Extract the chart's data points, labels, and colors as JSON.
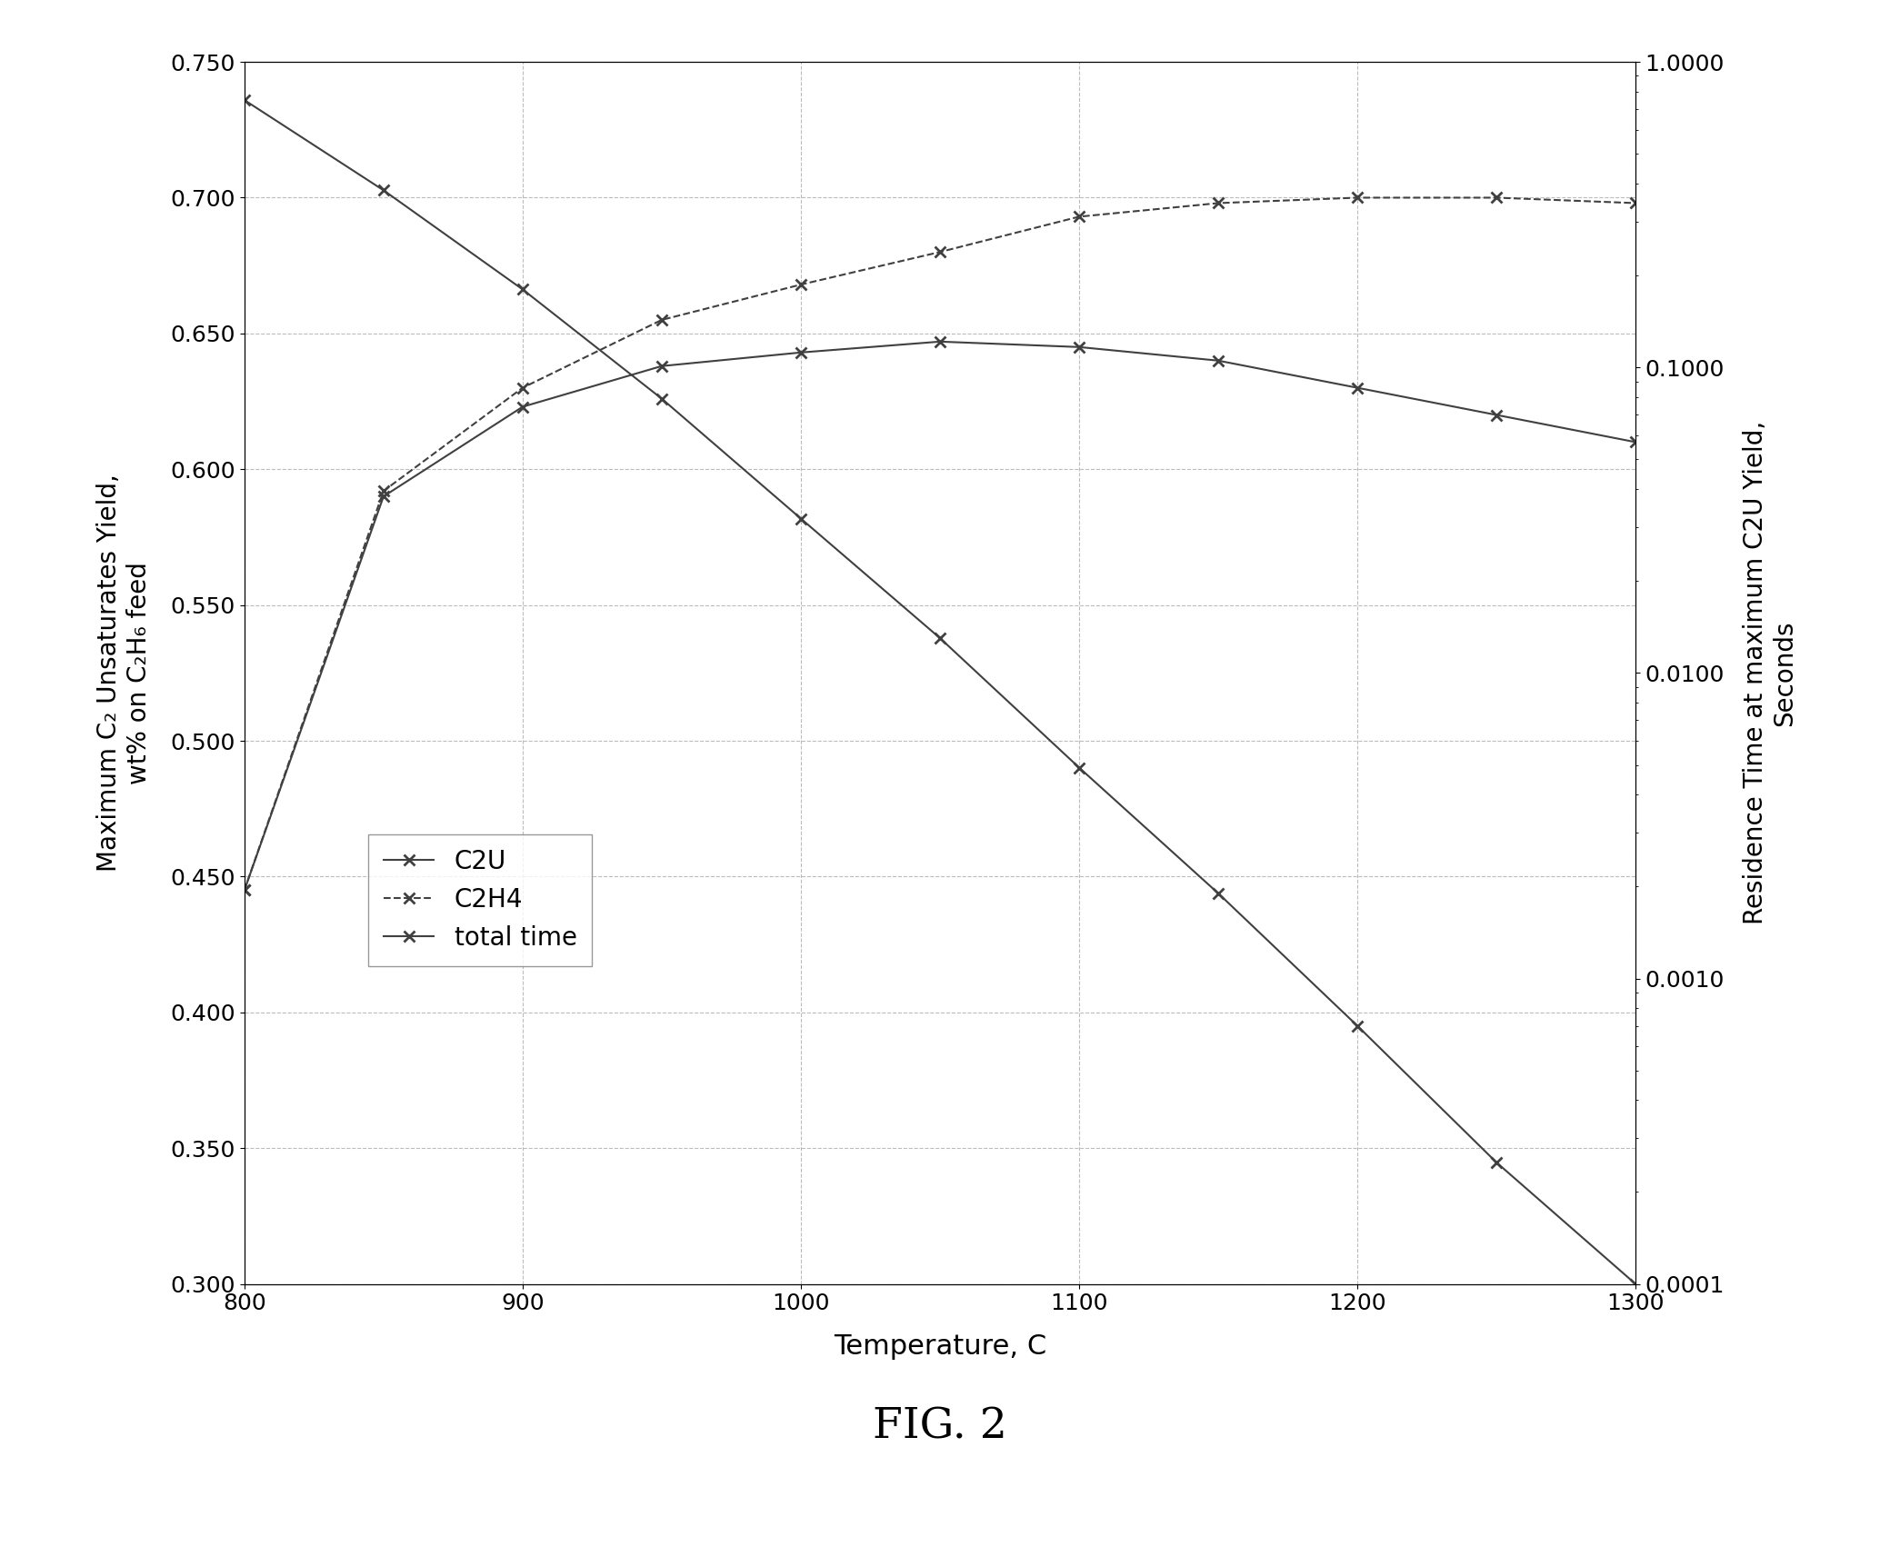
{
  "temperatures": [
    800,
    850,
    900,
    950,
    1000,
    1050,
    1100,
    1150,
    1200,
    1250,
    1300
  ],
  "C2U": [
    0.445,
    0.59,
    0.623,
    0.638,
    0.643,
    0.647,
    0.645,
    0.64,
    0.63,
    0.62,
    0.61
  ],
  "C2H4": [
    0.445,
    0.592,
    0.63,
    0.655,
    0.668,
    0.68,
    0.693,
    0.698,
    0.7,
    0.7,
    0.698
  ],
  "total_time": [
    0.75,
    0.38,
    0.18,
    0.079,
    0.032,
    0.013,
    0.0049,
    0.0019,
    0.0007,
    0.00025,
    0.0001
  ],
  "ylabel_left": "Maximum C₂ Unsaturates Yield,\nwt% on C₂H₆ feed",
  "ylabel_right": "Residence Time at maximum C2U Yield,\nSeconds",
  "xlabel": "Temperature, C",
  "fig_label": "FIG. 2",
  "legend_labels": [
    "C2U",
    "C2H4",
    "total time"
  ],
  "ylim_left": [
    0.3,
    0.75
  ],
  "ylim_right": [
    0.0001,
    1.0
  ],
  "xlim": [
    800,
    1300
  ],
  "yticks_left": [
    0.3,
    0.35,
    0.4,
    0.45,
    0.5,
    0.55,
    0.6,
    0.65,
    0.7,
    0.75
  ],
  "yticks_right_vals": [
    0.0001,
    0.001,
    0.01,
    0.1,
    1.0
  ],
  "yticks_right_labels": [
    "0.0001",
    "0.0010",
    "0.0100",
    "0.1000",
    "1.0000"
  ],
  "xticks": [
    800,
    900,
    1000,
    1100,
    1200,
    1300
  ],
  "line_color": "#404040",
  "background_color": "#ffffff",
  "grid_color": "#a0a0a0"
}
